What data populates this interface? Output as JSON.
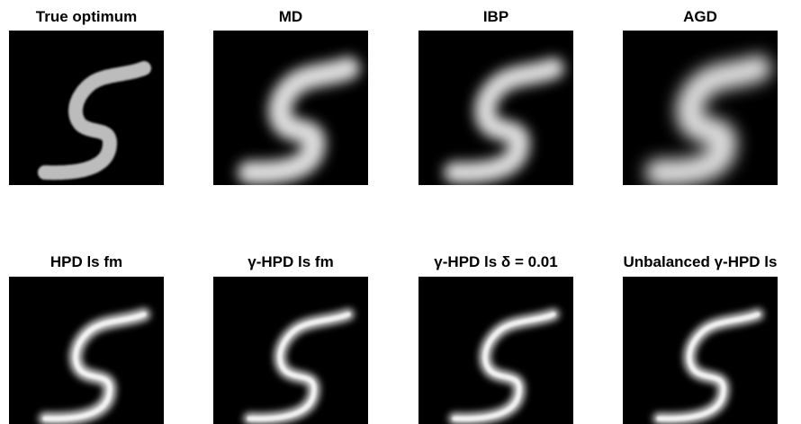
{
  "panels": [
    {
      "title": "True optimum"
    },
    {
      "title": "MD"
    },
    {
      "title": "IBP"
    },
    {
      "title": "AGD"
    },
    {
      "title": "HPD ls fm"
    },
    {
      "title": "γ-HPD ls fm"
    },
    {
      "title": "γ-HPD ls δ = 0.01"
    },
    {
      "title": "Unbalanced γ-HPD ls"
    }
  ]
}
